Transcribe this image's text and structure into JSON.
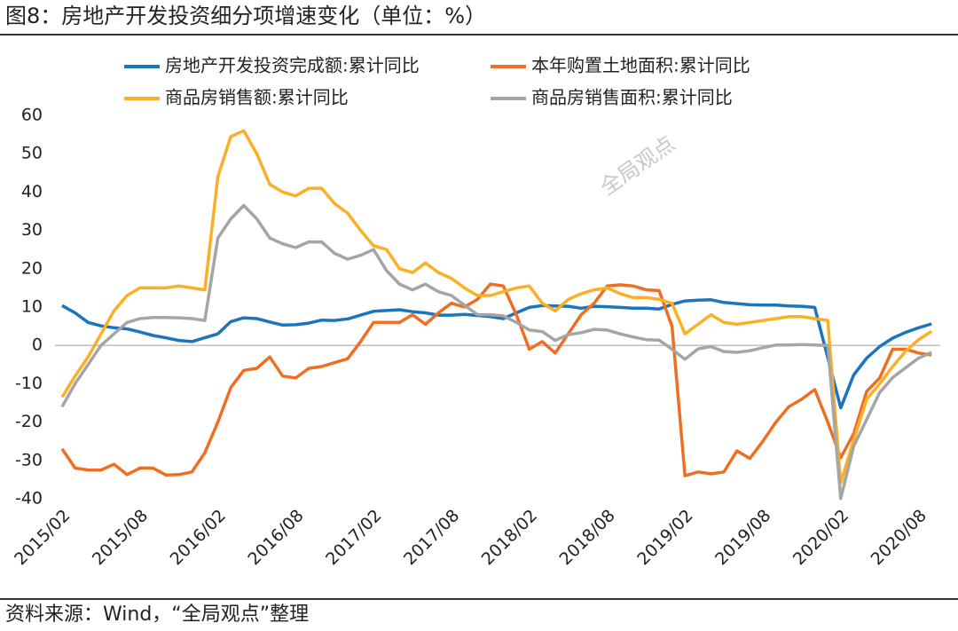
{
  "chart_data": {
    "type": "line",
    "title": "图8：房地产开发投资细分项增速变化（单位：%）",
    "source": "资料来源：Wind，“全局观点”整理",
    "watermark": "全局观点",
    "categories": [
      "2015/02",
      null,
      null,
      null,
      null,
      null,
      "2015/08",
      null,
      null,
      null,
      null,
      null,
      "2016/02",
      null,
      null,
      null,
      null,
      null,
      "2016/08",
      null,
      null,
      null,
      null,
      null,
      "2017/02",
      null,
      null,
      null,
      null,
      null,
      "2017/08",
      null,
      null,
      null,
      null,
      null,
      "2018/02",
      null,
      null,
      null,
      null,
      null,
      "2018/08",
      null,
      null,
      null,
      null,
      null,
      "2019/02",
      null,
      null,
      null,
      null,
      null,
      "2019/08",
      null,
      null,
      null,
      null,
      null,
      "2020/02",
      null,
      null,
      null,
      null,
      null,
      "2020/08",
      null
    ],
    "series": [
      {
        "name": "房地产开发投资完成额:累计同比",
        "color": "#1b75bc",
        "values": [
          10.4,
          8.5,
          6.0,
          5.1,
          4.6,
          4.3,
          3.5,
          2.6,
          2.0,
          1.3,
          1.0,
          2.0,
          3.0,
          6.2,
          7.2,
          7.0,
          6.1,
          5.3,
          5.4,
          5.8,
          6.6,
          6.5,
          6.9,
          7.9,
          8.9,
          9.1,
          9.3,
          8.8,
          8.5,
          7.9,
          7.9,
          8.1,
          7.8,
          7.5,
          7.0,
          8.5,
          9.9,
          10.4,
          10.3,
          10.2,
          9.7,
          10.2,
          10.1,
          9.9,
          9.7,
          9.7,
          9.5,
          10.7,
          11.6,
          11.8,
          11.9,
          11.2,
          10.9,
          10.6,
          10.5,
          10.5,
          10.3,
          10.2,
          9.9,
          -3.2,
          -16.3,
          -7.7,
          -3.3,
          -0.3,
          1.9,
          3.4,
          4.6,
          5.6
        ]
      },
      {
        "name": "本年购置土地面积:累计同比",
        "color": "#ee6f22",
        "values": [
          -27,
          -32,
          -32.5,
          -32.5,
          -31,
          -33.7,
          -32,
          -32,
          -33.8,
          -33.7,
          -33,
          -28,
          -20,
          -11,
          -6.5,
          -6,
          -3,
          -8,
          -8.5,
          -6,
          -5.5,
          -4.5,
          -3.5,
          1,
          6,
          6,
          6,
          8,
          5.5,
          8.5,
          11,
          10,
          12,
          16,
          15.5,
          8,
          -1,
          1,
          -2,
          3,
          8,
          11,
          15.5,
          15.8,
          15.5,
          14.5,
          14.3,
          5,
          -34,
          -33,
          -33.5,
          -33,
          -27.5,
          -29.5,
          -25,
          -20,
          -16,
          -14,
          -11.5,
          -20,
          -29.3,
          -23,
          -12,
          -8.5,
          -1,
          -1,
          -2,
          -2.5
        ]
      },
      {
        "name": "商品房销售额:累计同比",
        "color": "#fbaf24",
        "values": [
          -13.5,
          -8,
          -3,
          3,
          9,
          13,
          15,
          15,
          15,
          15.5,
          15,
          14.5,
          44,
          54.5,
          56,
          50,
          42,
          40,
          39,
          41,
          41,
          37,
          34.5,
          30,
          26,
          25,
          20,
          19,
          21.5,
          19,
          17.5,
          15,
          13,
          13,
          14,
          15,
          15.5,
          11,
          9,
          12,
          13.5,
          14.5,
          15,
          13.5,
          12.5,
          12.5,
          12,
          11,
          3,
          5.5,
          8,
          6,
          5.5,
          6,
          6.5,
          7,
          7.5,
          7.5,
          7,
          6.5,
          -35.9,
          -24.7,
          -14,
          -10,
          -5.5,
          -1.5,
          1.5,
          3.7
        ]
      },
      {
        "name": "商品房销售面积:累计同比",
        "color": "#a5a5a5",
        "values": [
          -16,
          -10,
          -5,
          0,
          3,
          6,
          7,
          7.3,
          7.3,
          7.2,
          7,
          6.5,
          28,
          33,
          36.5,
          33,
          28,
          26.5,
          25.5,
          27,
          27,
          24,
          22.5,
          23.5,
          25,
          19.5,
          16,
          14.5,
          16,
          14,
          13,
          10.5,
          8,
          8,
          7.7,
          6,
          4,
          3.6,
          1.3,
          2.8,
          3.3,
          4.2,
          4,
          3,
          2.2,
          1.5,
          1.4,
          -1,
          -3.6,
          -0.9,
          -0.3,
          -1.6,
          -1.8,
          -1.4,
          -0.6,
          0.1,
          0.1,
          0.2,
          0.1,
          0,
          -39.9,
          -26.3,
          -19.3,
          -12.3,
          -8.4,
          -5.8,
          -3.3,
          -1.8
        ]
      }
    ],
    "ylim": [
      -40,
      60
    ],
    "yticks": [
      -40,
      -30,
      -20,
      -10,
      0,
      10,
      20,
      30,
      40,
      50,
      60
    ],
    "grid": false
  }
}
